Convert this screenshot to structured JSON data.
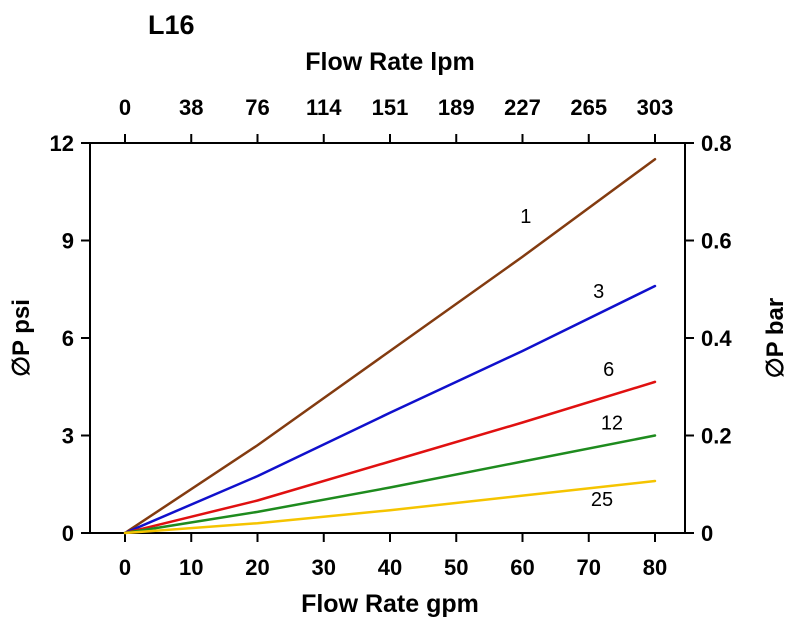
{
  "chart": {
    "title": "L16",
    "top_axis_label": "Flow Rate lpm",
    "bottom_axis_label": "Flow Rate gpm",
    "left_axis_label": "∅P psi",
    "right_axis_label": "∅P bar"
  },
  "chart_data": {
    "type": "line",
    "title": "L16",
    "grid": false,
    "legend": "inline-labels",
    "x_bottom": {
      "label": "Flow Rate gpm",
      "ticks": [
        "0",
        "10",
        "20",
        "30",
        "40",
        "50",
        "60",
        "70",
        "80"
      ],
      "range": [
        0,
        80
      ]
    },
    "x_top": {
      "label": "Flow Rate lpm",
      "ticks": [
        "0",
        "38",
        "76",
        "114",
        "151",
        "189",
        "227",
        "265",
        "303"
      ]
    },
    "y_left": {
      "label": "∅P psi",
      "ticks": [
        "0",
        "3",
        "6",
        "9",
        "12"
      ],
      "range": [
        0,
        12
      ]
    },
    "y_right": {
      "label": "∅P bar",
      "ticks": [
        "0",
        "0.2",
        "0.4",
        "0.6",
        "0.8"
      ]
    },
    "series": [
      {
        "name": "1",
        "color": "#833B10",
        "x": [
          0,
          20,
          40,
          60,
          80
        ],
        "y": [
          0,
          2.7,
          5.6,
          8.5,
          11.5
        ],
        "label_pos": [
          60.5,
          9.75
        ]
      },
      {
        "name": "3",
        "color": "#1010CC",
        "x": [
          0,
          20,
          40,
          60,
          80
        ],
        "y": [
          0,
          1.75,
          3.7,
          5.6,
          7.6
        ],
        "label_pos": [
          71.5,
          7.45
        ]
      },
      {
        "name": "6",
        "color": "#E01010",
        "x": [
          0,
          20,
          40,
          60,
          80
        ],
        "y": [
          0,
          1.0,
          2.2,
          3.4,
          4.65
        ],
        "label_pos": [
          73.0,
          5.05
        ]
      },
      {
        "name": "12",
        "color": "#1E8B1E",
        "x": [
          0,
          20,
          40,
          60,
          80
        ],
        "y": [
          0,
          0.65,
          1.4,
          2.2,
          3.0
        ],
        "label_pos": [
          73.5,
          3.4
        ]
      },
      {
        "name": "25",
        "color": "#F5C400",
        "x": [
          0,
          20,
          40,
          60,
          80
        ],
        "y": [
          0,
          0.3,
          0.7,
          1.15,
          1.6
        ],
        "label_pos": [
          72.0,
          1.05
        ]
      }
    ]
  }
}
